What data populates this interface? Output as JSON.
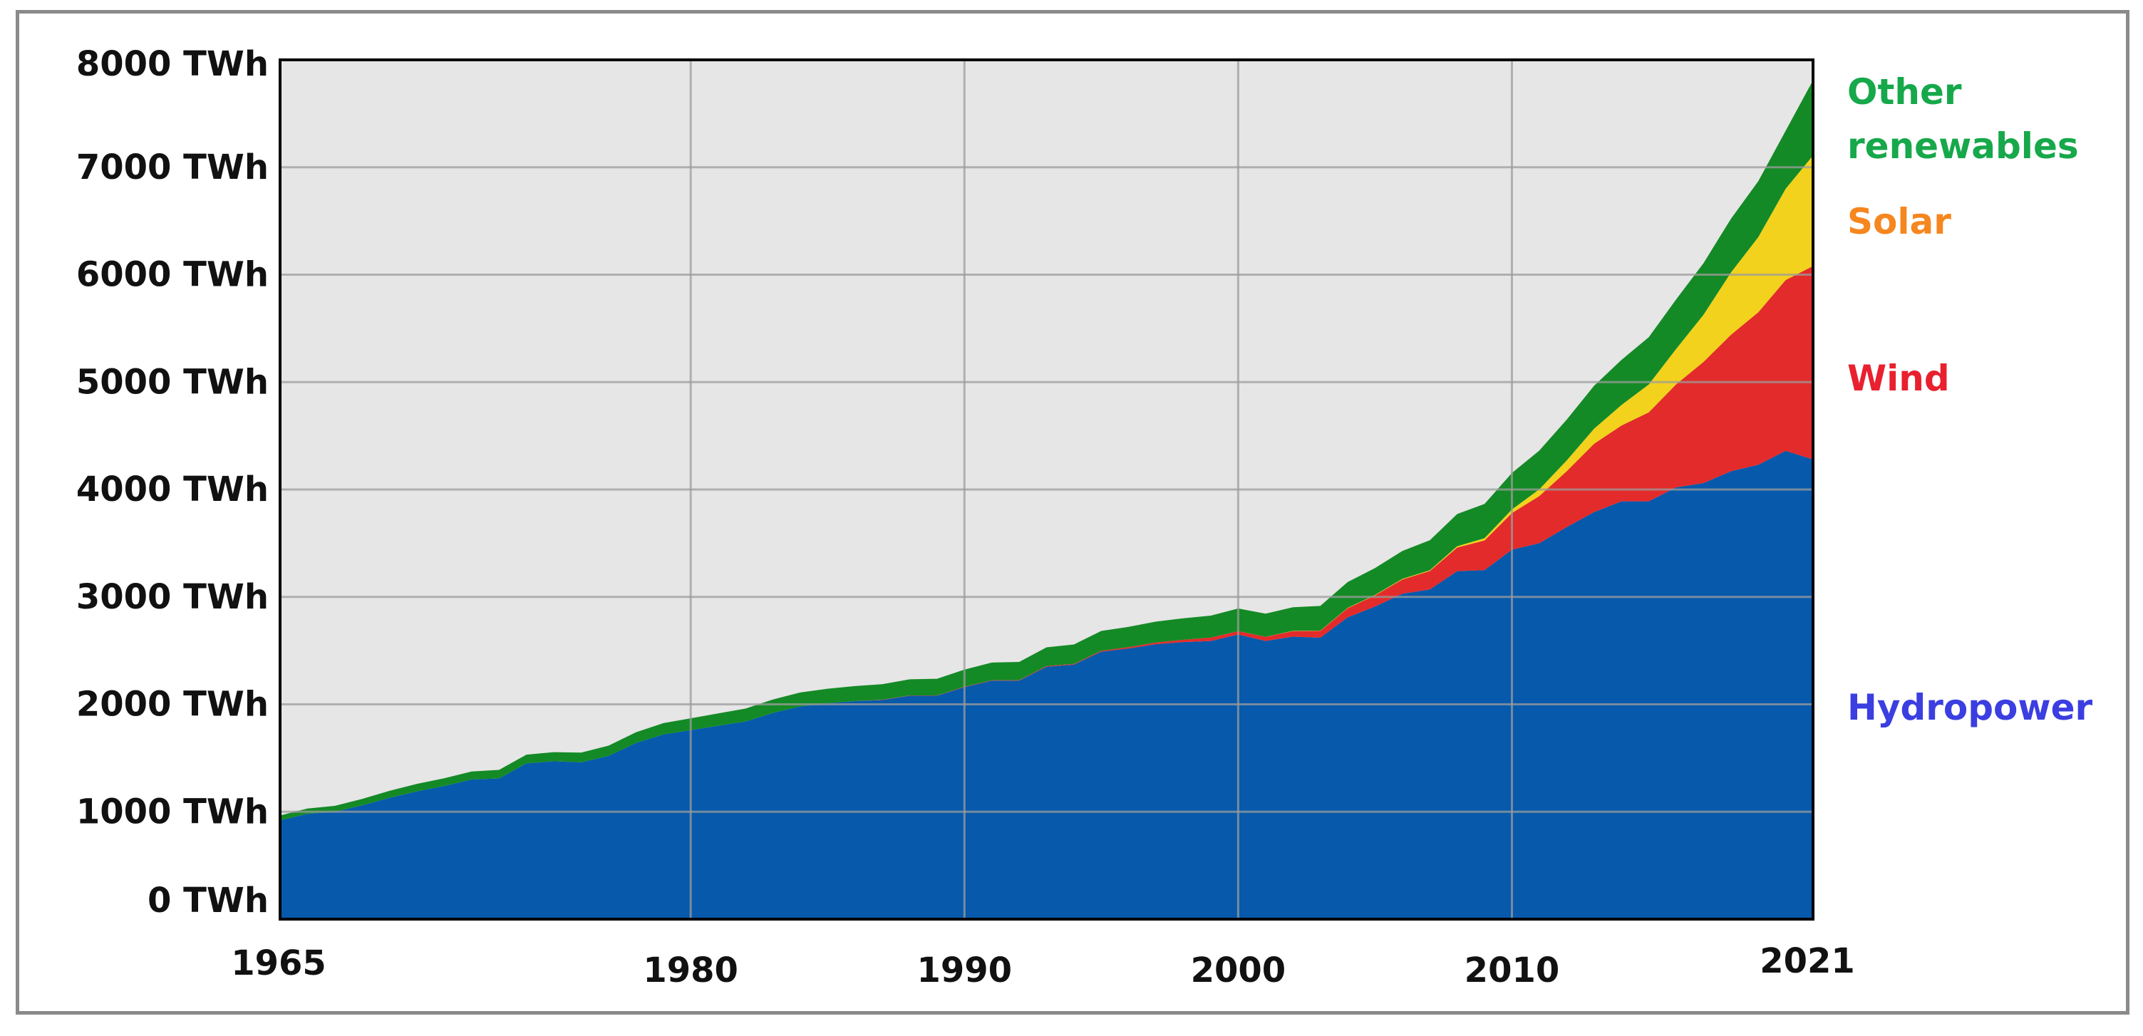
{
  "chart_data": {
    "type": "area",
    "stacked": true,
    "title": "",
    "xlabel": "",
    "ylabel": "",
    "x_tick_labels": [
      "1965",
      "1980",
      "1990",
      "2000",
      "2010",
      "2021"
    ],
    "y_tick_labels": [
      "0 TWh",
      "1000 TWh",
      "2000 TWh",
      "3000 TWh",
      "4000 TWh",
      "5000 TWh",
      "6000 TWh",
      "7000 TWh",
      "8000 TWh"
    ],
    "xlim": [
      1965,
      2021
    ],
    "ylim": [
      0,
      8000
    ],
    "grid": true,
    "legend_placement": "right (labels beside series ends)",
    "x": [
      1965,
      1966,
      1967,
      1968,
      1969,
      1970,
      1971,
      1972,
      1973,
      1974,
      1975,
      1976,
      1977,
      1978,
      1979,
      1980,
      1981,
      1982,
      1983,
      1984,
      1985,
      1986,
      1987,
      1988,
      1989,
      1990,
      1991,
      1992,
      1993,
      1994,
      1995,
      1996,
      1997,
      1998,
      1999,
      2000,
      2001,
      2002,
      2003,
      2004,
      2005,
      2006,
      2007,
      2008,
      2009,
      2010,
      2011,
      2012,
      2013,
      2014,
      2015,
      2016,
      2017,
      2018,
      2019,
      2020,
      2021
    ],
    "series": [
      {
        "name": "Hydropower",
        "color": "#0759ab",
        "values": [
          920,
          980,
          1000,
          1060,
          1130,
          1190,
          1240,
          1300,
          1310,
          1450,
          1470,
          1460,
          1520,
          1640,
          1720,
          1760,
          1800,
          1840,
          1920,
          1980,
          2010,
          2030,
          2040,
          2080,
          2080,
          2160,
          2220,
          2220,
          2350,
          2370,
          2490,
          2520,
          2560,
          2580,
          2590,
          2650,
          2590,
          2630,
          2620,
          2810,
          2910,
          3030,
          3070,
          3240,
          3250,
          3440,
          3500,
          3650,
          3790,
          3890,
          3890,
          4020,
          4060,
          4170,
          4230,
          4360,
          4280
        ]
      },
      {
        "name": "Wind",
        "color": "#e32b2b",
        "values": [
          0,
          0,
          0,
          0,
          0,
          0,
          0,
          0,
          0,
          0,
          0,
          0,
          0,
          0,
          0,
          0,
          0,
          0,
          0,
          0,
          0,
          0,
          3,
          3,
          3,
          4,
          4,
          5,
          6,
          7,
          8,
          12,
          15,
          21,
          31,
          31,
          38,
          52,
          63,
          85,
          104,
          133,
          171,
          220,
          276,
          341,
          438,
          520,
          635,
          706,
          828,
          959,
          1128,
          1270,
          1420,
          1590,
          1800
        ]
      },
      {
        "name": "Solar",
        "color": "#f2d21c",
        "values": [
          0,
          0,
          0,
          0,
          0,
          0,
          0,
          0,
          0,
          0,
          0,
          0,
          0,
          0,
          0,
          0,
          0,
          0,
          0,
          0,
          0,
          0,
          0,
          0,
          0,
          0,
          0,
          0,
          0,
          0,
          0,
          0,
          0,
          0,
          0,
          1,
          1,
          2,
          3,
          3,
          4,
          5,
          7,
          12,
          20,
          33,
          64,
          100,
          140,
          190,
          260,
          330,
          440,
          580,
          700,
          850,
          1030
        ]
      },
      {
        "name": "Other renewables",
        "color": "#148a26",
        "values": [
          45,
          50,
          55,
          60,
          65,
          70,
          72,
          75,
          80,
          82,
          85,
          90,
          95,
          100,
          105,
          110,
          115,
          120,
          125,
          130,
          135,
          140,
          145,
          150,
          155,
          160,
          165,
          170,
          175,
          180,
          185,
          190,
          195,
          200,
          205,
          210,
          215,
          220,
          230,
          240,
          250,
          260,
          280,
          300,
          320,
          340,
          360,
          380,
          400,
          420,
          440,
          460,
          480,
          500,
          520,
          540,
          700
        ]
      }
    ]
  },
  "legend": {
    "other_line1": "Other",
    "other_line2": "renewables",
    "solar": "Solar",
    "wind": "Wind",
    "hydro": "Hydropower",
    "other_color": "#16a84a",
    "solar_color": "#f6861f",
    "wind_color": "#e8202f",
    "hydro_color": "#3b3ee0"
  },
  "colors": {
    "plot_background": "#e6e6e6",
    "grid": "#9c9c9c",
    "axis": "#000000",
    "frame": "#8a8a8a"
  }
}
